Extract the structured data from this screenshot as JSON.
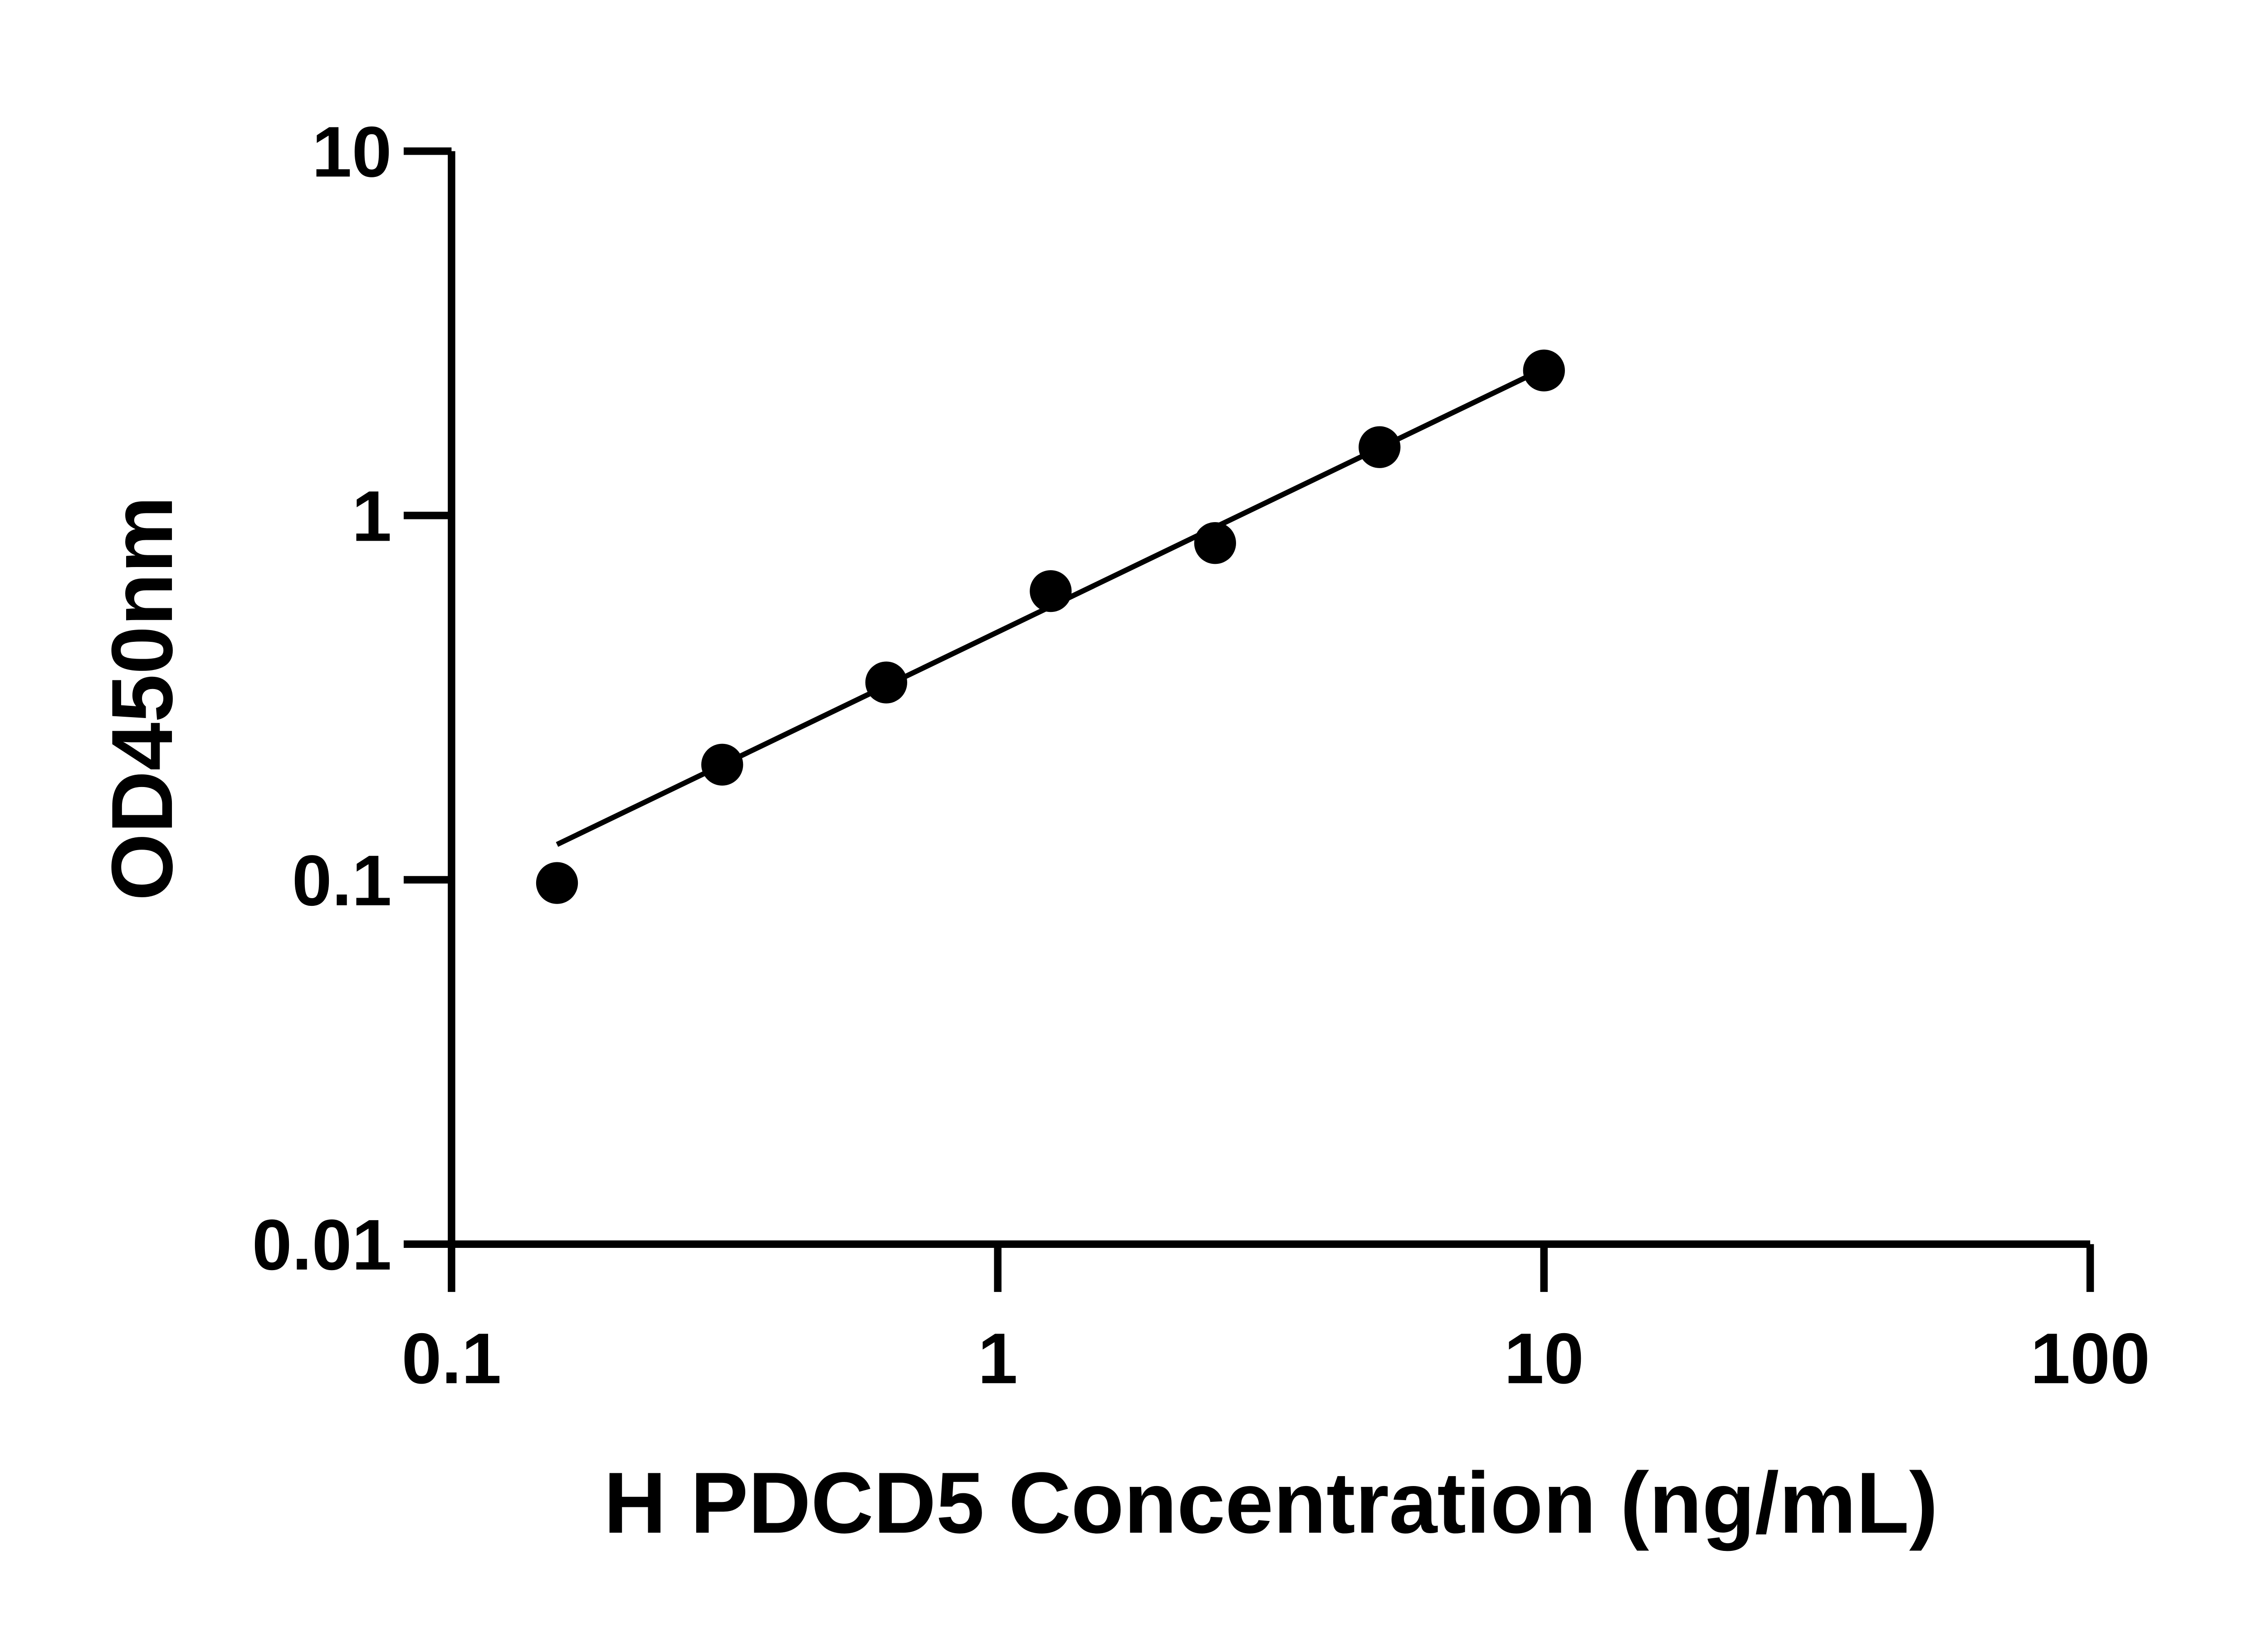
{
  "chart_data": {
    "type": "scatter",
    "title": "",
    "xlabel": "H PDCD5 Concentration (ng/mL)",
    "ylabel": "OD450nm",
    "xscale": "log",
    "yscale": "log",
    "xlim": [
      0.1,
      100
    ],
    "ylim": [
      0.01,
      10
    ],
    "xticks": [
      0.1,
      1,
      10,
      100
    ],
    "xtick_labels": [
      "0.1",
      "1",
      "10",
      "100"
    ],
    "yticks": [
      0.01,
      0.1,
      1,
      10
    ],
    "ytick_labels": [
      "0.01",
      "0.1",
      "1",
      "10"
    ],
    "grid": false,
    "legend": "none",
    "series": [
      {
        "x": [
          0.156,
          0.313,
          0.625,
          1.25,
          2.5,
          5,
          10
        ],
        "y": [
          0.098,
          0.207,
          0.348,
          0.62,
          0.84,
          1.54,
          2.5
        ],
        "color": "#000000",
        "marker": "filled-circle"
      }
    ],
    "fit_line": {
      "x": [
        0.156,
        9.3
      ],
      "y": [
        0.125,
        2.4
      ],
      "color": "#000000"
    }
  }
}
